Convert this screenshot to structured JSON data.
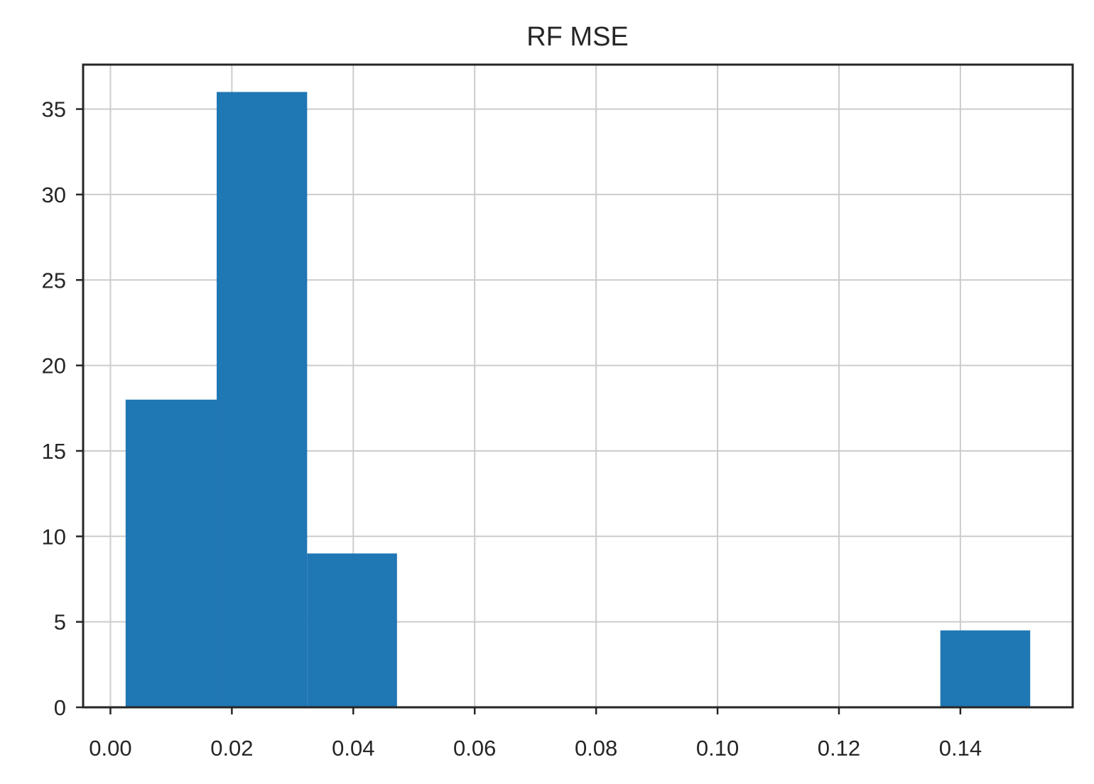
{
  "chart_data": {
    "type": "bar",
    "subtype": "histogram",
    "title": "RF MSE",
    "xlabel": "",
    "ylabel": "",
    "bins": [
      {
        "x0": 0.0025,
        "x1": 0.0175,
        "count": 18
      },
      {
        "x0": 0.0175,
        "x1": 0.0324,
        "count": 36
      },
      {
        "x0": 0.0324,
        "x1": 0.0472,
        "count": 9
      },
      {
        "x0": 0.1367,
        "x1": 0.1515,
        "count": 4.5
      }
    ],
    "xlim": [
      -0.0045,
      0.1585
    ],
    "ylim": [
      0,
      37.6
    ],
    "xticks": [
      0.0,
      0.02,
      0.04,
      0.06,
      0.08,
      0.1,
      0.12,
      0.14
    ],
    "xtick_labels": [
      "0.00",
      "0.02",
      "0.04",
      "0.06",
      "0.08",
      "0.10",
      "0.12",
      "0.14"
    ],
    "yticks": [
      0,
      5,
      10,
      15,
      20,
      25,
      30,
      35
    ],
    "ytick_labels": [
      "0",
      "5",
      "10",
      "15",
      "20",
      "25",
      "30",
      "35"
    ],
    "grid": true,
    "legend": "none",
    "colors": {
      "bar": "#1f77b4",
      "grid": "#cccccc",
      "axes": "#262626"
    }
  }
}
